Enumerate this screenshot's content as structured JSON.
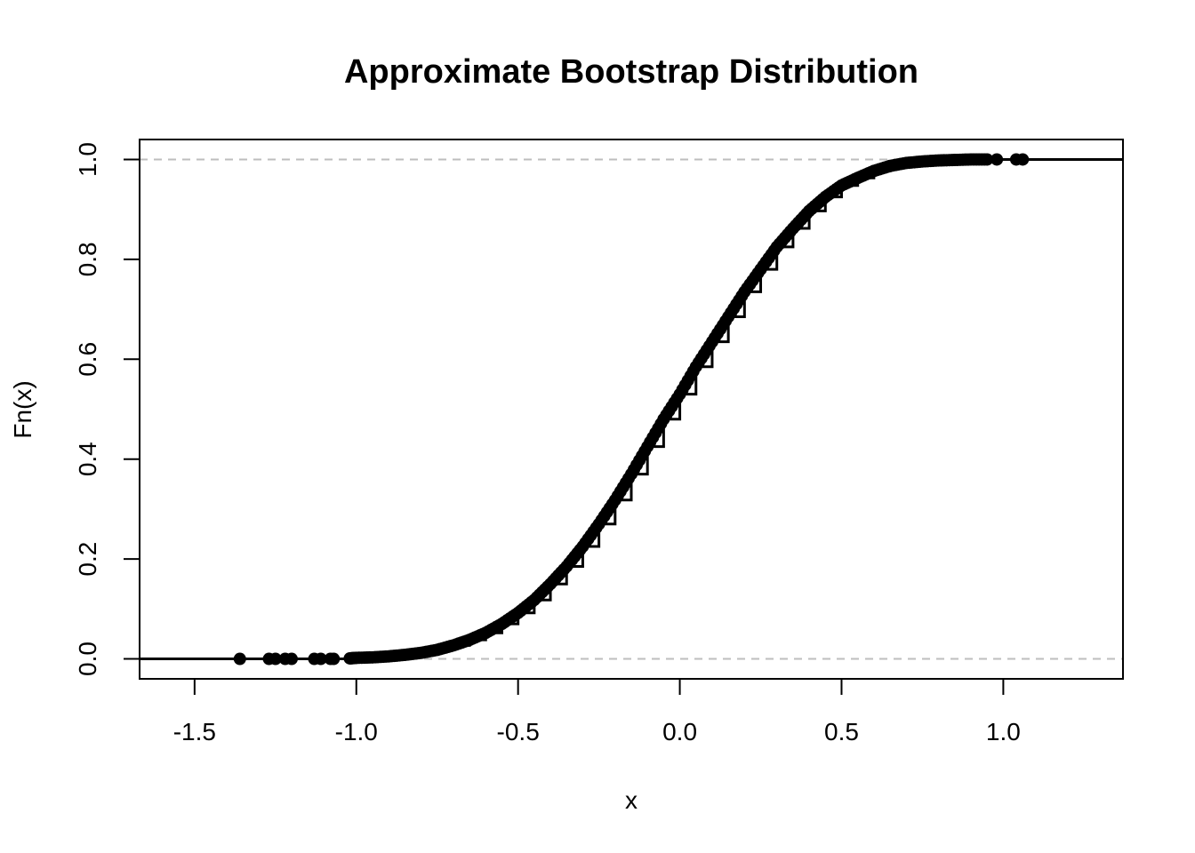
{
  "chart_data": {
    "type": "ecdf",
    "title": "Approximate Bootstrap Distribution",
    "xlabel": "x",
    "ylabel": "Fn(x)",
    "xlim": [
      -1.67,
      1.37
    ],
    "ylim": [
      -0.04,
      1.04
    ],
    "x_ticks": [
      -1.5,
      -1.0,
      -0.5,
      0.0,
      0.5,
      1.0
    ],
    "x_tick_labels": [
      "-1.5",
      "-1.0",
      "-0.5",
      "0.0",
      "0.5",
      "1.0"
    ],
    "y_ticks": [
      0.0,
      0.2,
      0.4,
      0.6,
      0.8,
      1.0
    ],
    "y_tick_labels": [
      "0.0",
      "0.2",
      "0.4",
      "0.6",
      "0.8",
      "1.0"
    ],
    "reference_lines": [
      0.0,
      1.0
    ],
    "grid": false,
    "legend": "none",
    "color": "#000000",
    "reference_color": "#bebebe",
    "series": [
      {
        "points": [
          [
            -1.36,
            0.0
          ],
          [
            -1.27,
            0.0
          ],
          [
            -1.25,
            0.0
          ],
          [
            -1.22,
            0.0
          ],
          [
            -1.2,
            0.0
          ],
          [
            -1.13,
            0.0
          ],
          [
            -1.11,
            0.0
          ],
          [
            -1.08,
            0.0
          ],
          [
            -1.07,
            0.0
          ],
          [
            -1.02,
            0.001
          ],
          [
            -1.0,
            0.002
          ],
          [
            -0.95,
            0.003
          ],
          [
            -0.9,
            0.005
          ],
          [
            -0.85,
            0.008
          ],
          [
            -0.8,
            0.012
          ],
          [
            -0.75,
            0.018
          ],
          [
            -0.7,
            0.027
          ],
          [
            -0.65,
            0.038
          ],
          [
            -0.6,
            0.052
          ],
          [
            -0.55,
            0.07
          ],
          [
            -0.5,
            0.092
          ],
          [
            -0.45,
            0.118
          ],
          [
            -0.4,
            0.15
          ],
          [
            -0.35,
            0.185
          ],
          [
            -0.3,
            0.225
          ],
          [
            -0.25,
            0.27
          ],
          [
            -0.2,
            0.318
          ],
          [
            -0.15,
            0.37
          ],
          [
            -0.1,
            0.425
          ],
          [
            -0.05,
            0.48
          ],
          [
            0.0,
            0.53
          ],
          [
            0.05,
            0.585
          ],
          [
            0.1,
            0.635
          ],
          [
            0.15,
            0.685
          ],
          [
            0.2,
            0.735
          ],
          [
            0.25,
            0.78
          ],
          [
            0.3,
            0.825
          ],
          [
            0.35,
            0.862
          ],
          [
            0.4,
            0.897
          ],
          [
            0.45,
            0.925
          ],
          [
            0.5,
            0.948
          ],
          [
            0.55,
            0.963
          ],
          [
            0.6,
            0.977
          ],
          [
            0.65,
            0.987
          ],
          [
            0.7,
            0.993
          ],
          [
            0.75,
            0.996
          ],
          [
            0.8,
            0.998
          ],
          [
            0.85,
            0.999
          ],
          [
            0.9,
            1.0
          ],
          [
            0.95,
            1.0
          ],
          [
            0.98,
            1.0
          ],
          [
            1.04,
            1.0
          ],
          [
            1.06,
            1.0
          ]
        ]
      }
    ]
  }
}
